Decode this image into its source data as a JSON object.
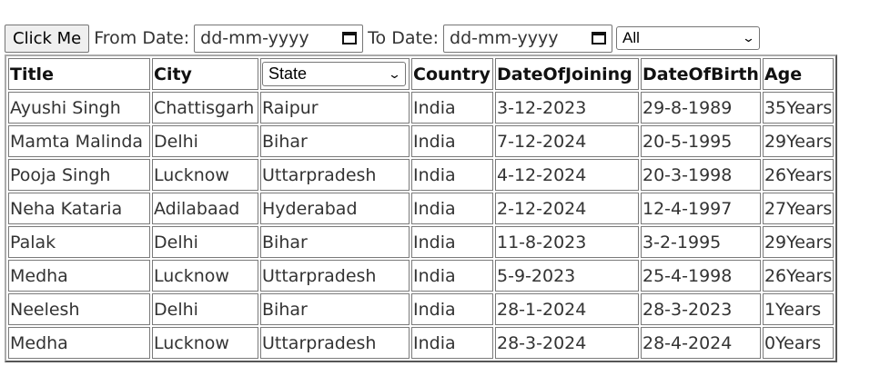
{
  "toolbar": {
    "click_label": "Click Me",
    "from_label": "From Date:",
    "from_placeholder": "dd-mm-yyyy",
    "to_label": "To Date:",
    "to_placeholder": "dd-mm-yyyy",
    "filter_value": "All"
  },
  "table": {
    "headers": {
      "title": "Title",
      "city": "City",
      "state_filter": "State",
      "country": "Country",
      "doj": "DateOfJoining",
      "dob": "DateOfBirth",
      "age": "Age"
    },
    "rows": [
      {
        "title": "Ayushi Singh",
        "city": "Chattisgarh",
        "state": "Raipur",
        "country": "India",
        "doj": "3-12-2023",
        "dob": "29-8-1989",
        "age": "35Years"
      },
      {
        "title": "Mamta Malinda",
        "city": "Delhi",
        "state": "Bihar",
        "country": "India",
        "doj": "7-12-2024",
        "dob": "20-5-1995",
        "age": "29Years"
      },
      {
        "title": "Pooja Singh",
        "city": "Lucknow",
        "state": "Uttarpradesh",
        "country": "India",
        "doj": "4-12-2024",
        "dob": "20-3-1998",
        "age": "26Years"
      },
      {
        "title": "Neha Kataria",
        "city": "Adilabaad",
        "state": "Hyderabad",
        "country": "India",
        "doj": "2-12-2024",
        "dob": "12-4-1997",
        "age": "27Years"
      },
      {
        "title": "Palak",
        "city": "Delhi",
        "state": "Bihar",
        "country": "India",
        "doj": "11-8-2023",
        "dob": "3-2-1995",
        "age": "29Years"
      },
      {
        "title": "Medha",
        "city": "Lucknow",
        "state": "Uttarpradesh",
        "country": "India",
        "doj": "5-9-2023",
        "dob": "25-4-1998",
        "age": "26Years"
      },
      {
        "title": "Neelesh",
        "city": "Delhi",
        "state": "Bihar",
        "country": "India",
        "doj": "28-1-2024",
        "dob": "28-3-2023",
        "age": "1Years"
      },
      {
        "title": "Medha",
        "city": "Lucknow",
        "state": "Uttarpradesh",
        "country": "India",
        "doj": "28-3-2024",
        "dob": "28-4-2024",
        "age": "0Years"
      }
    ]
  }
}
